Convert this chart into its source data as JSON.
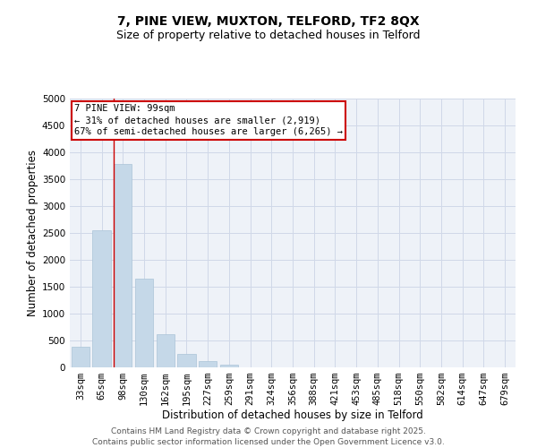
{
  "title_line1": "7, PINE VIEW, MUXTON, TELFORD, TF2 8QX",
  "title_line2": "Size of property relative to detached houses in Telford",
  "categories": [
    "33sqm",
    "65sqm",
    "98sqm",
    "130sqm",
    "162sqm",
    "195sqm",
    "227sqm",
    "259sqm",
    "291sqm",
    "324sqm",
    "356sqm",
    "388sqm",
    "421sqm",
    "453sqm",
    "485sqm",
    "518sqm",
    "550sqm",
    "582sqm",
    "614sqm",
    "647sqm",
    "679sqm"
  ],
  "values": [
    390,
    2550,
    3780,
    1650,
    625,
    255,
    110,
    55,
    0,
    0,
    0,
    0,
    0,
    0,
    0,
    0,
    0,
    0,
    0,
    0,
    0
  ],
  "bar_color": "#c5d8e8",
  "bar_edge_color": "#aac4d8",
  "grid_color": "#d0d8e8",
  "background_color": "#eef2f8",
  "vline_bar_index": 2,
  "vline_color": "#cc0000",
  "annotation_title": "7 PINE VIEW: 99sqm",
  "annotation_line2": "← 31% of detached houses are smaller (2,919)",
  "annotation_line3": "67% of semi-detached houses are larger (6,265) →",
  "annotation_box_color": "#cc0000",
  "xlabel": "Distribution of detached houses by size in Telford",
  "ylabel": "Number of detached properties",
  "ylim": [
    0,
    5000
  ],
  "yticks": [
    0,
    500,
    1000,
    1500,
    2000,
    2500,
    3000,
    3500,
    4000,
    4500,
    5000
  ],
  "footer_line1": "Contains HM Land Registry data © Crown copyright and database right 2025.",
  "footer_line2": "Contains public sector information licensed under the Open Government Licence v3.0.",
  "title_fontsize": 10,
  "subtitle_fontsize": 9,
  "axis_label_fontsize": 8.5,
  "tick_fontsize": 7.5,
  "annotation_fontsize": 7.5,
  "footer_fontsize": 6.5
}
